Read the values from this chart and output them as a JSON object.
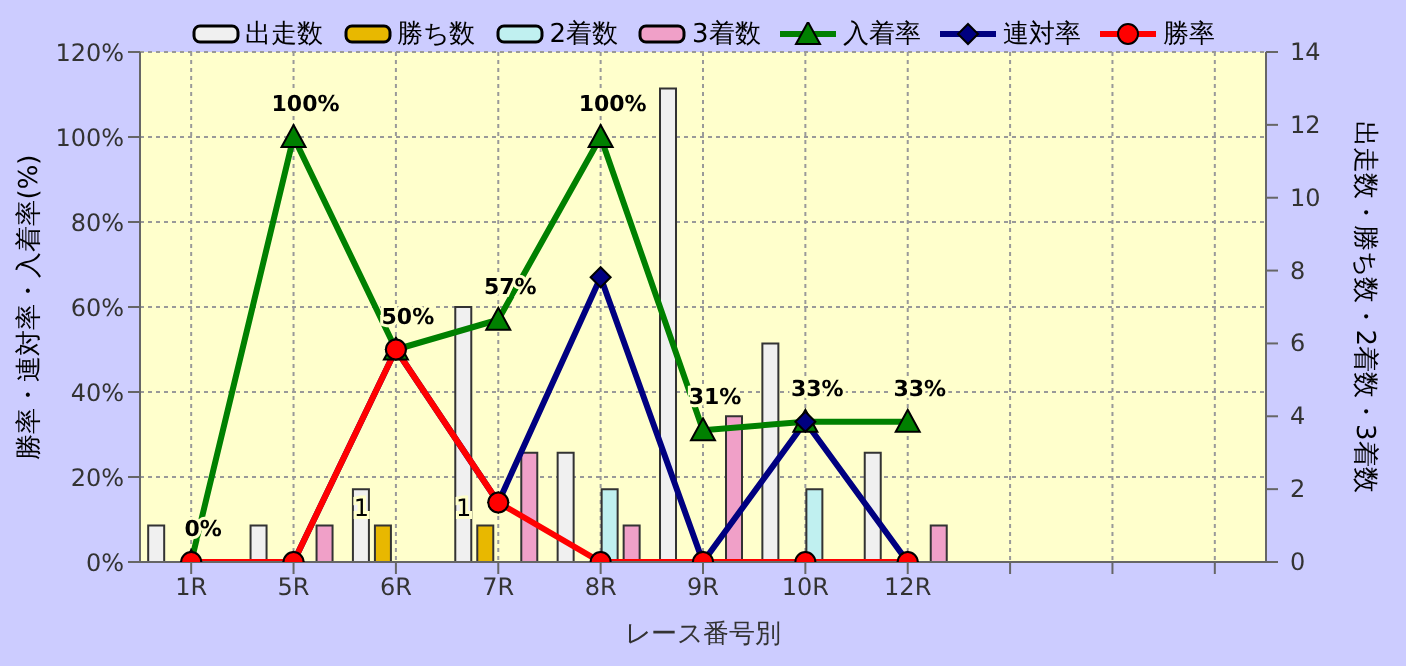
{
  "chart_data": {
    "type": "bar",
    "xlabel": "レース番号別",
    "ylabel": "勝率・連対率・入着率(%)",
    "y2label": "出走数・勝ち数・2着数・3着数",
    "categories": [
      "1R",
      "5R",
      "6R",
      "7R",
      "8R",
      "9R",
      "10R",
      "12R",
      null,
      null,
      null
    ],
    "ylim": [
      0,
      120
    ],
    "yticks": [
      {
        "value": 0,
        "label": "0%"
      },
      {
        "value": 20,
        "label": "20%"
      },
      {
        "value": 40,
        "label": "40%"
      },
      {
        "value": 60,
        "label": "60%"
      },
      {
        "value": 80,
        "label": "80%"
      },
      {
        "value": 100,
        "label": "100%"
      },
      {
        "value": 120,
        "label": "120%"
      }
    ],
    "y2lim": [
      0,
      14
    ],
    "y2ticks": [
      0,
      2,
      4,
      6,
      8,
      10,
      12,
      14
    ],
    "grid": true,
    "legend": "top",
    "series": [
      {
        "name": "出走数",
        "axis": "y2",
        "color": "#f0f0f0",
        "values": [
          1,
          1,
          2,
          7,
          3,
          13,
          6,
          3,
          null,
          null,
          null
        ]
      },
      {
        "name": "勝ち数",
        "axis": "y2",
        "color": "#e8b800",
        "values": [
          0,
          0,
          1,
          1,
          0,
          0,
          0,
          0,
          null,
          null,
          null
        ],
        "value_labels": [
          null,
          null,
          "1",
          "1",
          null,
          null,
          null,
          null,
          null,
          null,
          null
        ]
      },
      {
        "name": "2着数",
        "axis": "y2",
        "color": "#c0f0f0",
        "values": [
          0,
          0,
          0,
          0,
          2,
          0,
          2,
          0,
          null,
          null,
          null
        ]
      },
      {
        "name": "3着数",
        "axis": "y2",
        "color": "#f0a0c8",
        "values": [
          0,
          1,
          0,
          3,
          1,
          4,
          0,
          1,
          null,
          null,
          null
        ]
      },
      {
        "name": "入着率",
        "type": "line",
        "marker": "triangle",
        "color": "#008000",
        "values": [
          0,
          100,
          50,
          57,
          100,
          31,
          33,
          33,
          null,
          null,
          null
        ],
        "value_labels": [
          "0%",
          "100%",
          "50%",
          "57%",
          "100%",
          "31%",
          "33%",
          "33%",
          null,
          null,
          null
        ]
      },
      {
        "name": "連対率",
        "type": "line",
        "marker": "diamond",
        "color": "#000080",
        "values": [
          0,
          0,
          50,
          14,
          67,
          0,
          33,
          0,
          null,
          null,
          null
        ]
      },
      {
        "name": "勝率",
        "type": "line",
        "marker": "circle",
        "color": "#ff0000",
        "values": [
          0,
          0,
          50,
          14,
          0,
          0,
          0,
          0,
          null,
          null,
          null
        ]
      }
    ]
  }
}
